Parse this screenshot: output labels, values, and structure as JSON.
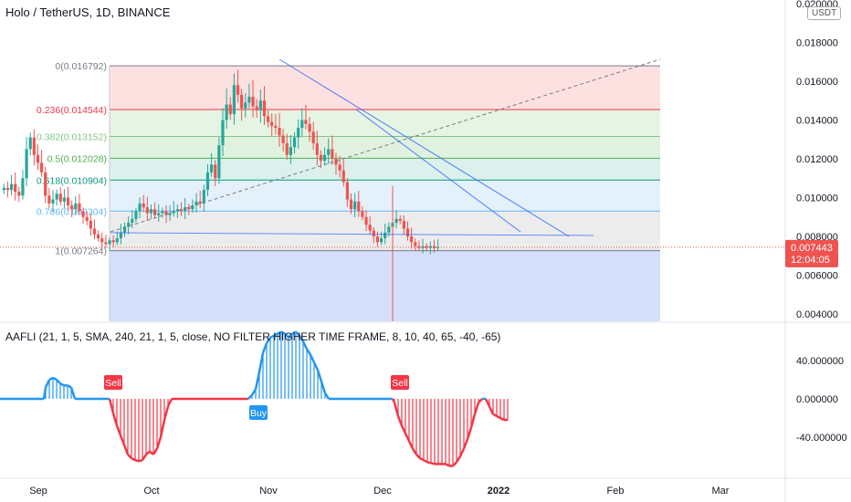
{
  "header": {
    "title": "Holo / TetherUS, 1D, BINANCE",
    "currency_badge": "USDT"
  },
  "indicator": {
    "title": "AAFLI (21, 1, 5, SMA, 240, 21, 1, 5, close, NO FILTER HIGHER TIME FRAME, 8, 10, 40, 65, -40, -65)"
  },
  "price_badge": {
    "price": "0.007443",
    "countdown": "12:04:05",
    "color": "#ef5350"
  },
  "chart_data": [
    {
      "type": "candlestick",
      "name": "price",
      "ylim": [
        0.0024,
        0.02
      ],
      "y_ticks": [
        "0.020000",
        "0.018000",
        "0.016000",
        "0.014000",
        "0.012000",
        "0.010000",
        "0.008000",
        "0.006000",
        "0.004000"
      ],
      "x_ticks": [
        "Sep",
        "Oct",
        "Nov",
        "Dec",
        "2022",
        "Feb",
        "Mar"
      ],
      "fib_levels": [
        {
          "label": "0(0.016792)",
          "value": 0.016792,
          "color": "#787b86",
          "fill": "#fcd7d7"
        },
        {
          "label": "0.236(0.014544)",
          "value": 0.014544,
          "color": "#f23645",
          "fill": "#def0d9"
        },
        {
          "label": "0.382(0.013152)",
          "value": 0.013152,
          "color": "#81c784",
          "fill": "#d6eed4"
        },
        {
          "label": "0.5(0.012028)",
          "value": 0.012028,
          "color": "#4caf50",
          "fill": "#d0ece6"
        },
        {
          "label": "0.618(0.010904)",
          "value": 0.010904,
          "color": "#089981",
          "fill": "#dbecfa"
        },
        {
          "label": "0.786(0.009304)",
          "value": 0.009304,
          "color": "#64b5f6",
          "fill": "#e6e6e6"
        },
        {
          "label": "1(0.007264)",
          "value": 0.007264,
          "color": "#787b86",
          "fill": "#d0dcfa"
        }
      ],
      "last_price": 0.007443
    },
    {
      "type": "histogram",
      "name": "AAFLI",
      "ylim": [
        -75,
        72
      ],
      "y_ticks": [
        "40.000000",
        "0.000000",
        "-40.000000"
      ],
      "signals": [
        {
          "label": "Sell",
          "color": "#f23645"
        },
        {
          "label": "Buy",
          "color": "#2196f3"
        },
        {
          "label": "Sell",
          "color": "#f23645"
        }
      ]
    }
  ]
}
